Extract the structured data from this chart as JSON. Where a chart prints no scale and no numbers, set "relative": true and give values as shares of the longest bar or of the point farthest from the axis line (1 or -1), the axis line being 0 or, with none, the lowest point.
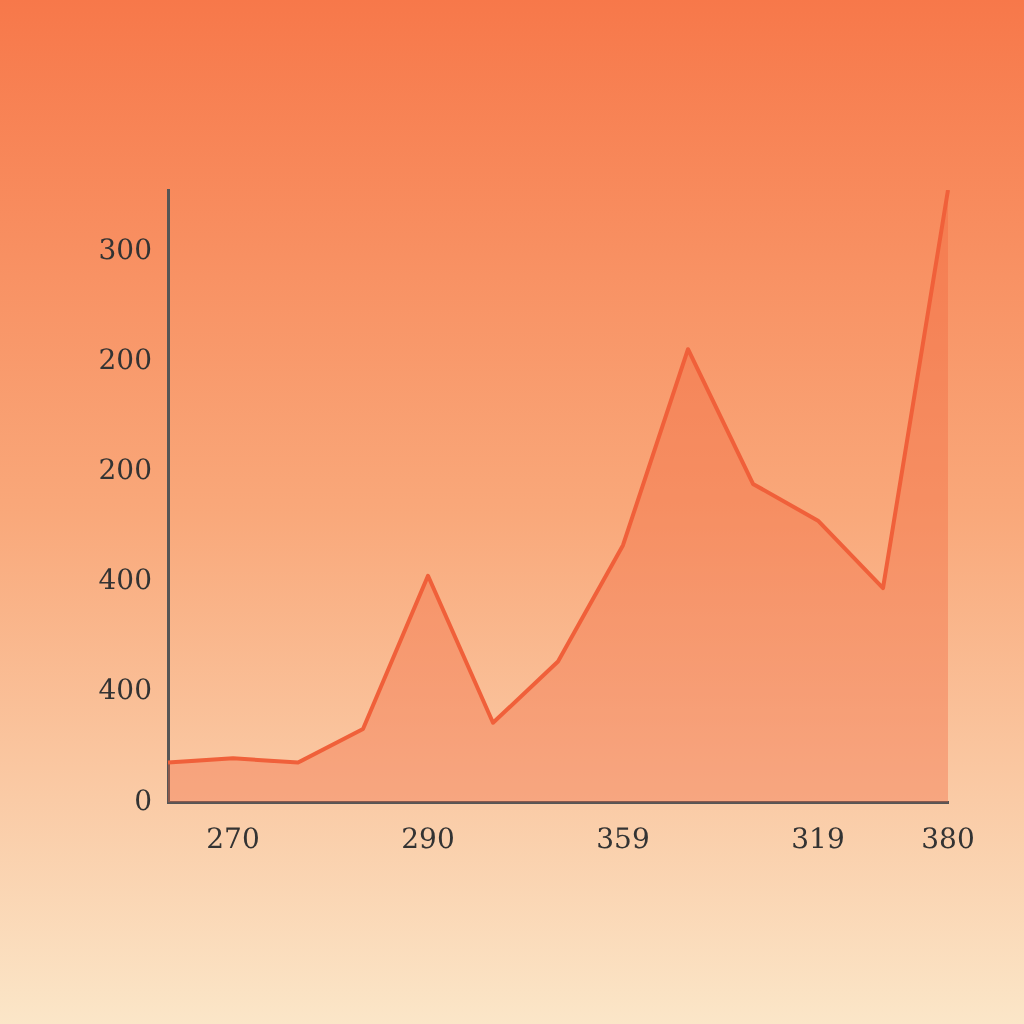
{
  "chart_data": {
    "type": "area",
    "relative": true,
    "categories": [
      null,
      "270",
      null,
      null,
      "290",
      null,
      null,
      "359",
      null,
      null,
      "319",
      null,
      "380"
    ],
    "series": [
      {
        "color": "#f0603a",
        "values": [
          0.065,
          0.072,
          0.065,
          0.12,
          0.37,
          0.13,
          0.23,
          0.42,
          0.74,
          0.52,
          0.46,
          0.35,
          1
        ]
      }
    ],
    "annotations": [
      "0",
      "400",
      "400",
      "200",
      "200",
      "300"
    ],
    "legend": false,
    "marker": "none",
    "line_style": "solid"
  }
}
